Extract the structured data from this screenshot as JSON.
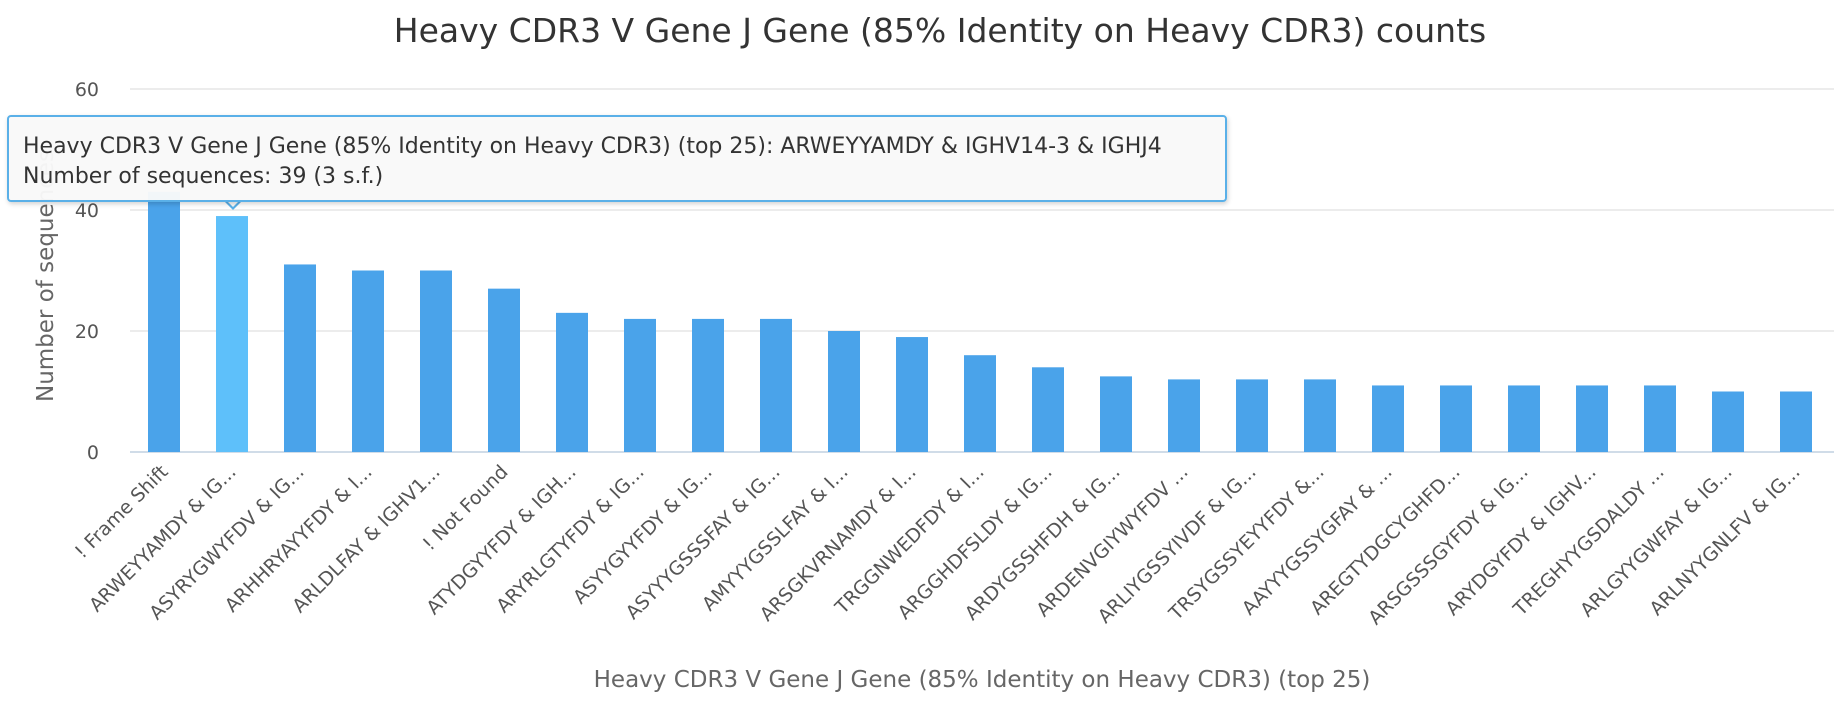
{
  "chart_data": {
    "type": "bar",
    "title": "Heavy CDR3 V Gene J Gene (85% Identity on Heavy CDR3) counts",
    "xlabel": "Heavy CDR3 V Gene J Gene (85% Identity on Heavy CDR3) (top 25)",
    "ylabel": "Number of sequences",
    "ylim": [
      0,
      60
    ],
    "yticks": [
      0,
      20,
      40,
      60
    ],
    "grid": true,
    "categories": [
      "! Frame Shift",
      "ARWEYYAMDY & IG...",
      "ASYRYGWYFDV & IG...",
      "ARHHRYAYYFDY & I...",
      "ARLDLFAY & IGHV1...",
      "! Not Found",
      "ATYDGYYFDY & IGH...",
      "ARYRLGTYFDY & IG...",
      "ASYYGYYFDY & IG...",
      "ASYYYGSSSFAY & IG...",
      "AMYYYGSSLFAY & I...",
      "ARSGKVRNAMDY & I...",
      "TRGGNWEDFDY & I...",
      "ARGGHDFSLDY & IG...",
      "ARDYGSSHFDH & IG...",
      "ARDENVGIYWYFDV ...",
      "ARLIYGSSYIVDF & IG...",
      "TRSYGSSYEYYFDY &...",
      "AAYYYGSSYGFAY & ...",
      "AREGTYDGCYGHFD...",
      "ARSGSSSGYFDY & IG...",
      "ARYDGYFDY & IGHV...",
      "TREGHYYGSDALDY ...",
      "ARLGYYGWFAY & IG...",
      "ARLNYYGNLFV & IG..."
    ],
    "values": [
      43,
      39,
      31,
      30,
      30,
      27,
      23,
      22,
      22,
      22,
      20,
      19,
      16,
      14,
      12.5,
      12,
      12,
      12,
      11,
      11,
      11,
      11,
      11,
      10,
      10
    ],
    "highlight_index": 1,
    "colors": {
      "bar": "#4aa3ea",
      "bar_hover": "#5ec0fa",
      "grid": "#e6e6e6",
      "axis": "#c0d0e0"
    }
  },
  "tooltip": {
    "line1": "Heavy CDR3 V Gene J Gene (85% Identity on Heavy CDR3) (top 25): ARWEYYAMDY & IGHV14-3 & IGHJ4",
    "line2": "Number of sequences: 39 (3 s.f.)"
  }
}
